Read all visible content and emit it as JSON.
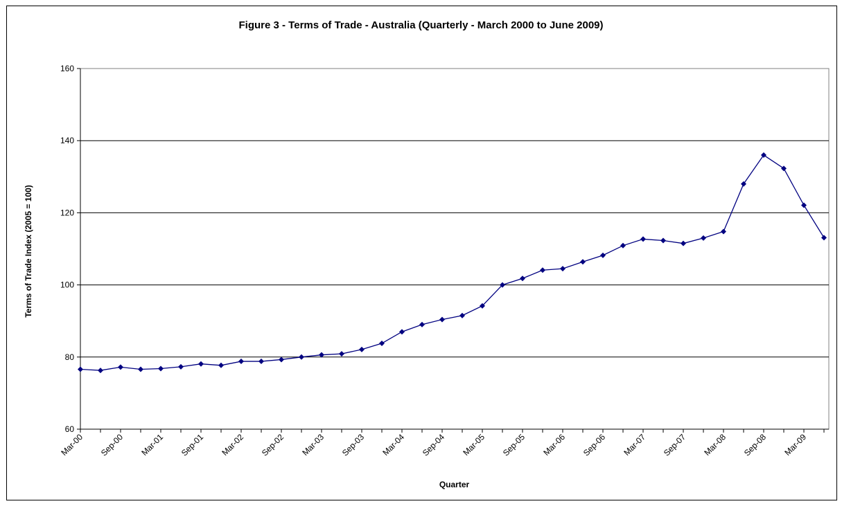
{
  "chart_data": {
    "type": "line",
    "title": "Figure 3 - Terms of Trade - Australia (Quarterly - March 2000 to June 2009)",
    "xlabel": "Quarter",
    "ylabel": "Terms of Trade Index (2005 = 100)",
    "ylim": [
      60,
      160
    ],
    "yticks": [
      60,
      80,
      100,
      120,
      140,
      160
    ],
    "grid": "horizontal",
    "legend": "none",
    "categories": [
      "Mar-00",
      "Jun-00",
      "Sep-00",
      "Dec-00",
      "Mar-01",
      "Jun-01",
      "Sep-01",
      "Dec-01",
      "Mar-02",
      "Jun-02",
      "Sep-02",
      "Dec-02",
      "Mar-03",
      "Jun-03",
      "Sep-03",
      "Dec-03",
      "Mar-04",
      "Jun-04",
      "Sep-04",
      "Dec-04",
      "Mar-05",
      "Jun-05",
      "Sep-05",
      "Dec-05",
      "Mar-06",
      "Jun-06",
      "Sep-06",
      "Dec-06",
      "Mar-07",
      "Jun-07",
      "Sep-07",
      "Dec-07",
      "Mar-08",
      "Jun-08",
      "Sep-08",
      "Dec-08",
      "Mar-09",
      "Jun-09"
    ],
    "xtick_labels": [
      "Mar-00",
      "Sep-00",
      "Mar-01",
      "Sep-01",
      "Mar-02",
      "Sep-02",
      "Mar-03",
      "Sep-03",
      "Mar-04",
      "Sep-04",
      "Mar-05",
      "Sep-05",
      "Mar-06",
      "Sep-06",
      "Mar-07",
      "Sep-07",
      "Mar-08",
      "Sep-08",
      "Mar-09"
    ],
    "series": [
      {
        "values": [
          76.6,
          76.3,
          77.2,
          76.6,
          76.8,
          77.3,
          78.1,
          77.7,
          78.8,
          78.8,
          79.3,
          80.0,
          80.6,
          80.9,
          82.1,
          83.8,
          87.0,
          89.0,
          90.4,
          91.5,
          94.2,
          100.0,
          101.8,
          104.1,
          104.5,
          106.4,
          108.2,
          110.9,
          112.7,
          112.3,
          111.5,
          113.0,
          114.8,
          128.0,
          136.0,
          132.3,
          122.1,
          113.1
        ],
        "color": "#000080"
      }
    ]
  }
}
